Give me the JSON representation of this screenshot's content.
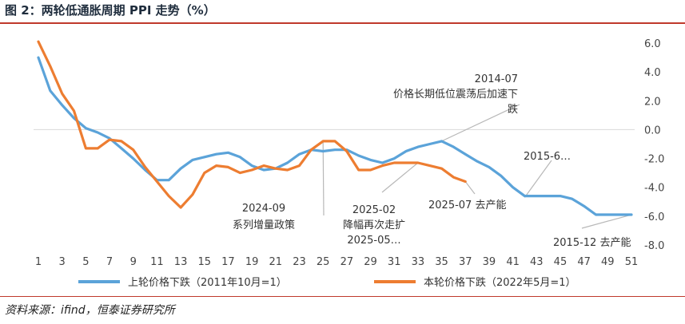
{
  "header": {
    "title": "图 2：两轮低通胀周期 PPI 走势（%）"
  },
  "footer": {
    "source": "资料来源：ifind，恒泰证券研究所"
  },
  "chart_data": {
    "type": "line",
    "xlim": [
      1,
      51
    ],
    "ylim": [
      -8,
      6
    ],
    "y_ticks": [
      6,
      4,
      2,
      0,
      -2,
      -4,
      -6,
      -8
    ],
    "y_tick_labels": [
      "6.0",
      "4.0",
      "2.0",
      "0.0",
      "-2.0",
      "-4.0",
      "-6.0",
      "-8.0"
    ],
    "x_ticks": [
      1,
      3,
      5,
      7,
      9,
      11,
      13,
      15,
      17,
      19,
      21,
      23,
      25,
      27,
      29,
      31,
      33,
      35,
      37,
      39,
      41,
      43,
      45,
      47,
      49,
      51
    ],
    "x_tick_labels": [
      "1",
      "3",
      "5",
      "7",
      "9",
      "11",
      "13",
      "15",
      "17",
      "19",
      "21",
      "23",
      "25",
      "27",
      "29",
      "31",
      "33",
      "35",
      "37",
      "39",
      "41",
      "43",
      "45",
      "47",
      "49",
      "51"
    ],
    "grid": false,
    "legend_position": "bottom",
    "series": [
      {
        "name": "上轮价格下跌（2011年10月=1）",
        "color": "#5ba3d9",
        "x": [
          1,
          2,
          3,
          4,
          5,
          6,
          7,
          8,
          9,
          10,
          11,
          12,
          13,
          14,
          15,
          16,
          17,
          18,
          19,
          20,
          21,
          22,
          23,
          24,
          25,
          26,
          27,
          28,
          29,
          30,
          31,
          32,
          33,
          34,
          35,
          36,
          37,
          38,
          39,
          40,
          41,
          42,
          43,
          44,
          45,
          46,
          47,
          48,
          49,
          50,
          51
        ],
        "y": [
          5.0,
          2.7,
          1.7,
          0.8,
          0.1,
          -0.2,
          -0.6,
          -1.3,
          -2.0,
          -2.8,
          -3.5,
          -3.5,
          -2.7,
          -2.1,
          -1.9,
          -1.7,
          -1.6,
          -1.9,
          -2.5,
          -2.8,
          -2.7,
          -2.3,
          -1.7,
          -1.4,
          -1.5,
          -1.4,
          -1.4,
          -1.8,
          -2.1,
          -2.3,
          -2.0,
          -1.5,
          -1.2,
          -1.0,
          -0.8,
          -1.2,
          -1.7,
          -2.2,
          -2.6,
          -3.2,
          -4.0,
          -4.6,
          -4.6,
          -4.6,
          -4.6,
          -4.8,
          -5.3,
          -5.9,
          -5.9,
          -5.9,
          -5.9
        ]
      },
      {
        "name": "本轮价格下跌（2022年5月=1）",
        "color": "#ed7d31",
        "x": [
          1,
          2,
          3,
          4,
          5,
          6,
          7,
          8,
          9,
          10,
          11,
          12,
          13,
          14,
          15,
          16,
          17,
          18,
          19,
          20,
          21,
          22,
          23,
          24,
          25,
          26,
          27,
          28,
          29,
          30,
          31,
          32,
          33,
          34,
          35,
          36,
          37
        ],
        "y": [
          6.1,
          4.4,
          2.5,
          1.3,
          -1.3,
          -1.3,
          -0.7,
          -0.8,
          -1.4,
          -2.6,
          -3.6,
          -4.6,
          -5.4,
          -4.5,
          -3.0,
          -2.5,
          -2.6,
          -3.0,
          -2.8,
          -2.5,
          -2.7,
          -2.8,
          -2.5,
          -1.4,
          -0.8,
          -0.8,
          -1.5,
          -2.8,
          -2.8,
          -2.5,
          -2.3,
          -2.3,
          -2.3,
          -2.5,
          -2.7,
          -3.3,
          -3.6
        ]
      }
    ],
    "annotations": [
      {
        "lines": [
          "2014-07",
          "价格长期低位震荡后加速下",
          "跌"
        ],
        "anchor_x": 35,
        "anchor_y": -0.8
      },
      {
        "lines": [
          "2015-6…"
        ],
        "anchor_x": 42,
        "anchor_y": -4.7
      },
      {
        "lines": [
          "2024-09",
          "系列增量政策"
        ],
        "anchor_x": 25,
        "anchor_y": -0.8
      },
      {
        "lines": [
          "2025-02",
          "降幅再次走扩",
          "2025-05…"
        ],
        "anchor_x": 33,
        "anchor_y": -2.3
      },
      {
        "lines": [
          "2025-07  去产能"
        ],
        "anchor_x": 37,
        "anchor_y": -3.6
      },
      {
        "lines": [
          "2015-12  去产能"
        ],
        "anchor_x": 51,
        "anchor_y": -5.9
      }
    ]
  }
}
